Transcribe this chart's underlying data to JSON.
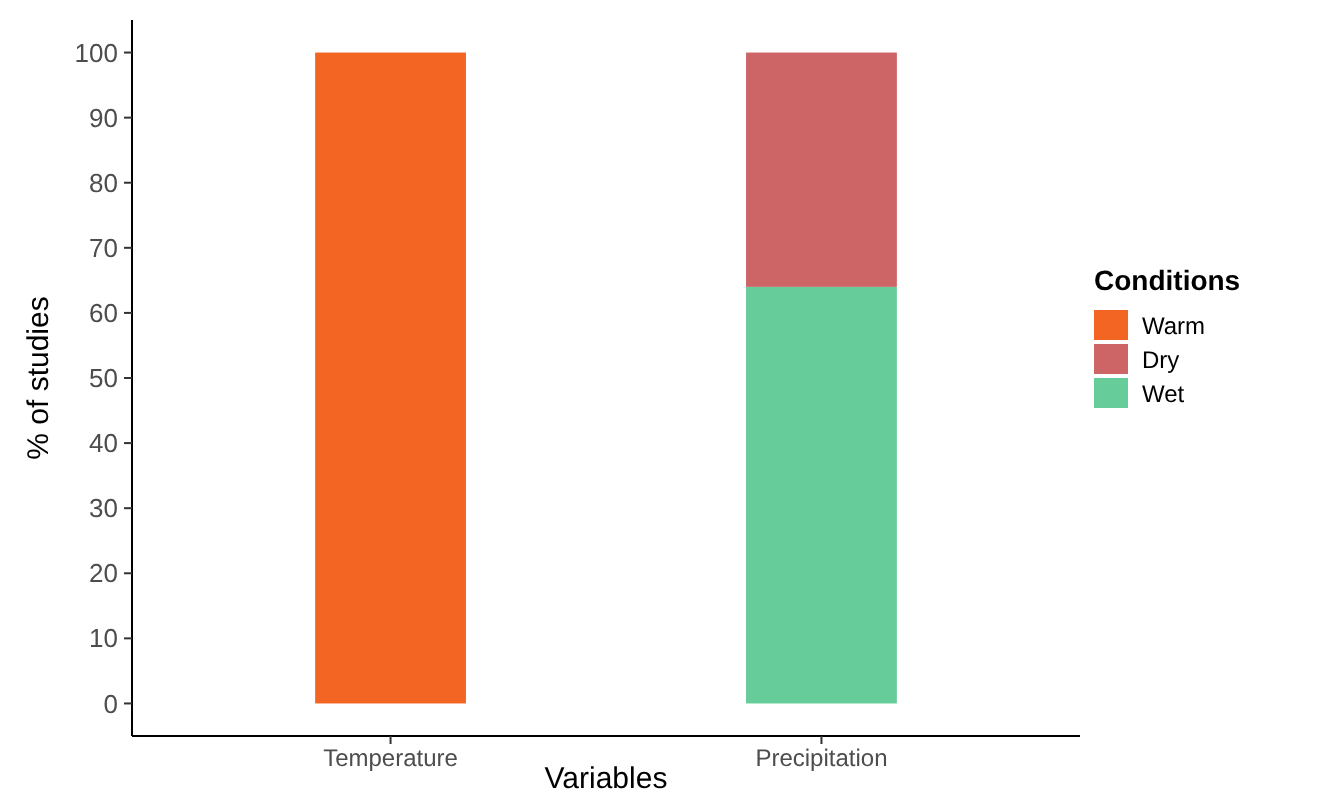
{
  "chart_data": {
    "type": "bar",
    "stacked": true,
    "xlabel": "Variables",
    "ylabel": "% of studies",
    "legend_title": "Conditions",
    "legend": "right",
    "grid": false,
    "categories": [
      "Temperature",
      "Precipitation"
    ],
    "series": [
      {
        "name": "Wet",
        "color": "#66cc99",
        "values": [
          null,
          64
        ]
      },
      {
        "name": "Dry",
        "color": "#cd6466",
        "values": [
          null,
          36
        ]
      },
      {
        "name": "Warm",
        "color": "#f26522",
        "values": [
          100,
          null
        ]
      }
    ],
    "ylim": [
      -5,
      105
    ],
    "yticks": [
      0,
      10,
      20,
      30,
      40,
      50,
      60,
      70,
      80,
      90,
      100
    ]
  }
}
